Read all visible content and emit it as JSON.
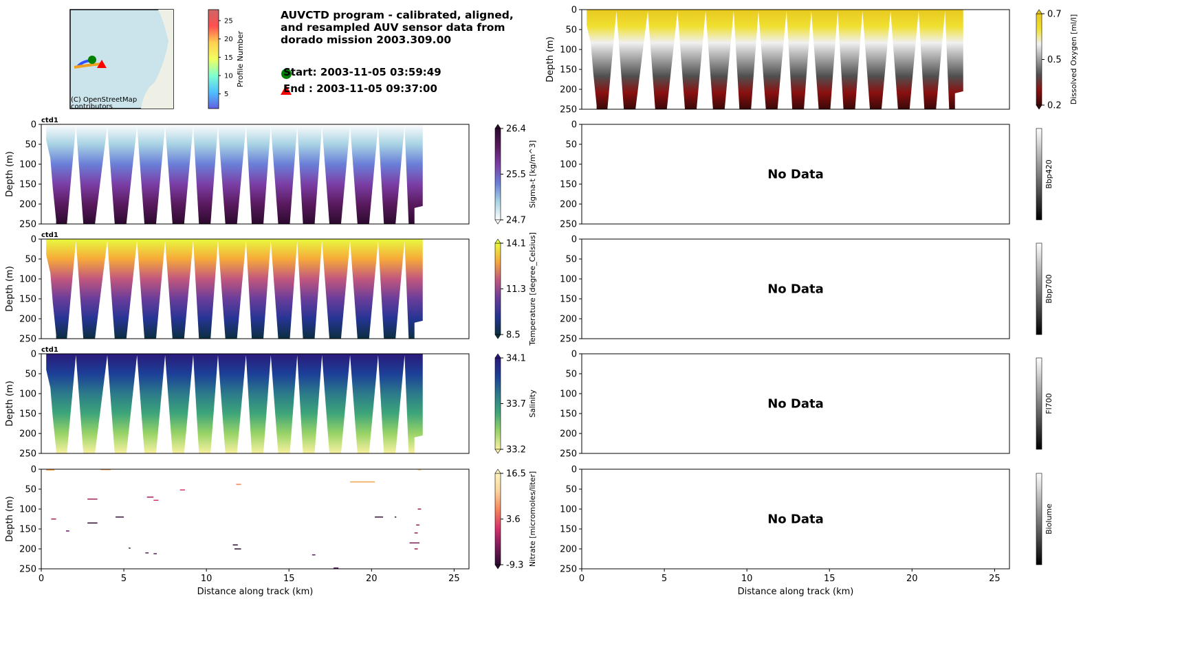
{
  "title": "AUVCTD program - calibrated, aligned, and resampled AUV sensor data from dorado mission 2003.309.00",
  "start_label": "Start: 2003-11-05 03:59:49",
  "end_label": "End  : 2003-11-05 09:37:00",
  "map": {
    "attribution": [
      "(C) OpenStreetMap",
      "contributors"
    ],
    "colorbar_label": "Profile Number",
    "colorbar_ticks": [
      5,
      10,
      15,
      20,
      25
    ]
  },
  "colors": {
    "start": "#008000",
    "end": "#ff0000"
  },
  "chart_data": [
    {
      "type": "heatmap",
      "name": "sigma-t",
      "panel_label": "ctd1",
      "ylabel": "Depth (m)",
      "xlim": [
        0,
        25.9
      ],
      "ylim": [
        250,
        0
      ],
      "yticks": [
        0,
        50,
        100,
        150,
        200,
        250
      ],
      "xticks": [],
      "colorbar_label": "Sigma-t [kg/m^3]",
      "colorbar_ticks": [
        "26.4",
        "25.5",
        "24.7"
      ],
      "cmap": [
        "#fdfdfd",
        "#a8d3e4",
        "#6a7fd8",
        "#7b3fa6",
        "#5a1a5e",
        "#2b0a2e"
      ],
      "column": "left"
    },
    {
      "type": "heatmap",
      "name": "temperature",
      "panel_label": "ctd1",
      "ylabel": "Depth (m)",
      "xlim": [
        0,
        25.9
      ],
      "ylim": [
        250,
        0
      ],
      "yticks": [
        0,
        50,
        100,
        150,
        200,
        250
      ],
      "xticks": [],
      "colorbar_label": "Temperature [degree_Celsius]",
      "colorbar_ticks": [
        "14.1",
        "11.3",
        "8.5"
      ],
      "cmap": [
        "#e8f93e",
        "#f7a93a",
        "#c1577e",
        "#6a3d9a",
        "#253494",
        "#0c2f40"
      ],
      "column": "left"
    },
    {
      "type": "heatmap",
      "name": "salinity",
      "panel_label": "ctd1",
      "ylabel": "Depth (m)",
      "xlim": [
        0,
        25.9
      ],
      "ylim": [
        250,
        0
      ],
      "yticks": [
        0,
        50,
        100,
        150,
        200,
        250
      ],
      "xticks": [],
      "colorbar_label": "Salinity",
      "colorbar_ticks": [
        "34.1",
        "33.7",
        "33.2"
      ],
      "cmap": [
        "#2a1a7a",
        "#1c3f98",
        "#2b7a8a",
        "#3ea57a",
        "#98d367",
        "#f8f0a0"
      ],
      "column": "left"
    },
    {
      "type": "scatter",
      "name": "nitrate",
      "panel_label": "",
      "ylabel": "Depth (m)",
      "xlabel": "Distance along track (km)",
      "xlim": [
        0,
        25.9
      ],
      "ylim": [
        250,
        0
      ],
      "yticks": [
        0,
        50,
        100,
        150,
        200,
        250
      ],
      "xticks": [
        0,
        5,
        10,
        15,
        20,
        25
      ],
      "colorbar_label": "Nitrate [micromoles/liter]",
      "colorbar_ticks": [
        "16.5",
        "3.6",
        "-9.3"
      ],
      "cmap": [
        "#2b0a2e",
        "#7a1a5a",
        "#d7306a",
        "#f6825a",
        "#fbd39a",
        "#fdf3c0"
      ],
      "column": "left",
      "segments": [
        [
          0.3,
          0.8,
          2,
          "#f6a04a"
        ],
        [
          3.6,
          4.2,
          1,
          "#f6a04a"
        ],
        [
          2.8,
          3.4,
          75,
          "#9a1a50"
        ],
        [
          0.6,
          0.9,
          125,
          "#9a1a50"
        ],
        [
          2.8,
          3.4,
          135,
          "#2b0a2e"
        ],
        [
          4.5,
          5.0,
          120,
          "#2b0a2e"
        ],
        [
          1.5,
          1.7,
          155,
          "#5a1a5e"
        ],
        [
          6.4,
          6.8,
          70,
          "#9a1a50"
        ],
        [
          6.8,
          7.1,
          78,
          "#d7306a"
        ],
        [
          8.4,
          8.7,
          52,
          "#d7306a"
        ],
        [
          11.8,
          12.1,
          38,
          "#f6825a"
        ],
        [
          11.6,
          11.9,
          190,
          "#2b0a2e"
        ],
        [
          11.7,
          12.1,
          200,
          "#2b0a2e"
        ],
        [
          5.3,
          5.4,
          198,
          "#2b0a2e"
        ],
        [
          6.3,
          6.5,
          210,
          "#5a1a5e"
        ],
        [
          6.8,
          7.0,
          212,
          "#5a1a5e"
        ],
        [
          16.4,
          16.6,
          215,
          "#5a1a5e"
        ],
        [
          17.7,
          18.0,
          248,
          "#5a1a5e"
        ],
        [
          18.7,
          20.2,
          32,
          "#f6a04a"
        ],
        [
          20.2,
          20.7,
          120,
          "#2b0a2e"
        ],
        [
          21.4,
          21.5,
          120,
          "#2b0a2e"
        ],
        [
          22.3,
          22.9,
          185,
          "#7a1a5a"
        ],
        [
          22.8,
          23.0,
          100,
          "#9a1a50"
        ],
        [
          22.7,
          22.9,
          140,
          "#9a1a50"
        ],
        [
          22.6,
          22.8,
          160,
          "#9a1a50"
        ],
        [
          22.6,
          22.8,
          200,
          "#9a1a50"
        ],
        [
          22.8,
          23.0,
          2,
          "#fbd39a"
        ]
      ]
    },
    {
      "type": "heatmap",
      "name": "dissolved-oxygen",
      "panel_label": "",
      "ylabel": "Depth (m)",
      "xlim": [
        0,
        25.9
      ],
      "ylim": [
        250,
        0
      ],
      "yticks": [
        0,
        50,
        100,
        150,
        200,
        250
      ],
      "xticks": [],
      "colorbar_label": "Dissolved Oxygen [ml/l]",
      "colorbar_ticks": [
        "0.7",
        "0.5",
        "0.2"
      ],
      "cmap": [
        "#e8c820",
        "#f0e030",
        "#f0f0f0",
        "#a0a0a0",
        "#505050",
        "#8a1010",
        "#3a0808"
      ],
      "column": "right"
    },
    {
      "type": "heatmap",
      "name": "bbp420",
      "no_data": "No Data",
      "ylabel": "",
      "xlim": [
        0,
        25.9
      ],
      "ylim": [
        250,
        0
      ],
      "yticks": [
        0,
        50,
        100,
        150,
        200,
        250
      ],
      "xticks": [],
      "colorbar_label": "Bbp420",
      "colorbar_ticks": [],
      "column": "right"
    },
    {
      "type": "heatmap",
      "name": "bbp700",
      "no_data": "No Data",
      "ylabel": "",
      "xlim": [
        0,
        25.9
      ],
      "ylim": [
        250,
        0
      ],
      "yticks": [
        0,
        50,
        100,
        150,
        200,
        250
      ],
      "xticks": [],
      "colorbar_label": "Bbp700",
      "colorbar_ticks": [],
      "column": "right"
    },
    {
      "type": "heatmap",
      "name": "fl700",
      "no_data": "No Data",
      "ylabel": "",
      "xlim": [
        0,
        25.9
      ],
      "ylim": [
        250,
        0
      ],
      "yticks": [
        0,
        50,
        100,
        150,
        200,
        250
      ],
      "xticks": [],
      "colorbar_label": "Fl700",
      "colorbar_ticks": [],
      "column": "right"
    },
    {
      "type": "heatmap",
      "name": "biolume",
      "no_data": "No Data",
      "ylabel": "",
      "xlabel": "Distance along track (km)",
      "xlim": [
        0,
        25.9
      ],
      "ylim": [
        250,
        0
      ],
      "yticks": [
        0,
        50,
        100,
        150,
        200,
        250
      ],
      "xticks": [
        0,
        5,
        10,
        15,
        20,
        25
      ],
      "colorbar_label": "Biolume",
      "colorbar_ticks": [],
      "column": "right"
    }
  ],
  "track": {
    "gap_apex_km": [
      2.1,
      4.0,
      5.8,
      7.5,
      9.2,
      10.7,
      12.4,
      13.9,
      15.5,
      17.0,
      18.7,
      20.4,
      22.0
    ],
    "bottom_km": [
      1.2,
      2.9,
      4.8,
      6.6,
      8.3,
      9.9,
      11.5,
      13.1,
      14.7,
      16.2,
      17.8,
      19.5,
      21.1,
      22.6
    ],
    "end_km": 23.1
  }
}
